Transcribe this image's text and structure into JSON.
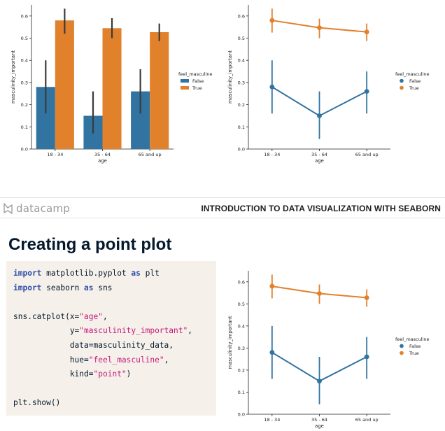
{
  "slide": {
    "brand": "datacamp",
    "course_title": "INTRODUCTION TO DATA VISUALIZATION WITH SEABORN",
    "title": "Creating a point plot",
    "code": [
      [
        {
          "t": "import",
          "c": "kw"
        },
        {
          "t": " matplotlib.pyplot ",
          "c": ""
        },
        {
          "t": "as",
          "c": "kw"
        },
        {
          "t": " plt",
          "c": ""
        }
      ],
      [
        {
          "t": "import",
          "c": "kw"
        },
        {
          "t": " seaborn ",
          "c": ""
        },
        {
          "t": "as",
          "c": "kw"
        },
        {
          "t": " sns",
          "c": ""
        }
      ],
      [],
      [
        {
          "t": "sns.catplot(x=",
          "c": ""
        },
        {
          "t": "\"age\"",
          "c": "str"
        },
        {
          "t": ",",
          "c": ""
        }
      ],
      [
        {
          "t": "            y=",
          "c": ""
        },
        {
          "t": "\"masculinity_important\"",
          "c": "str"
        },
        {
          "t": ",",
          "c": ""
        }
      ],
      [
        {
          "t": "            data=masculinity_data,",
          "c": ""
        }
      ],
      [
        {
          "t": "            hue=",
          "c": ""
        },
        {
          "t": "\"feel_masculine\"",
          "c": "str"
        },
        {
          "t": ",",
          "c": ""
        }
      ],
      [
        {
          "t": "            kind=",
          "c": ""
        },
        {
          "t": "\"point\"",
          "c": "str"
        },
        {
          "t": ")",
          "c": ""
        }
      ],
      [],
      [
        {
          "t": "plt.show()",
          "c": ""
        }
      ]
    ]
  },
  "colors": {
    "false_series": "#3274a1",
    "true_series": "#e1812c",
    "code_bg": "#f5f1ea",
    "keyword": "#2e4fa8",
    "string": "#c7197a"
  },
  "chart_data": [
    {
      "type": "bar",
      "categories": [
        "18 - 34",
        "35 - 64",
        "65 and up"
      ],
      "xlabel": "age",
      "ylabel": "masculinity_important",
      "ylim": [
        0,
        0.65
      ],
      "yticks": [
        "0.0",
        "0.1",
        "0.2",
        "0.3",
        "0.4",
        "0.5",
        "0.6"
      ],
      "legend_title": "feel_masculine",
      "legend_placement": "center-right",
      "series": [
        {
          "name": "False",
          "values": [
            0.28,
            0.15,
            0.26
          ],
          "ci": [
            [
              0.16,
              0.4
            ],
            [
              0.07,
              0.26
            ],
            [
              0.16,
              0.36
            ]
          ]
        },
        {
          "name": "True",
          "values": [
            0.58,
            0.545,
            0.527
          ],
          "ci": [
            [
              0.52,
              0.633
            ],
            [
              0.5,
              0.59
            ],
            [
              0.487,
              0.566
            ]
          ]
        }
      ]
    },
    {
      "type": "line",
      "categories": [
        "18 - 34",
        "35 - 64",
        "65 and up"
      ],
      "xlabel": "age",
      "ylabel": "masculinity_important",
      "ylim": [
        0,
        0.65
      ],
      "yticks": [
        "0.0",
        "0.1",
        "0.2",
        "0.3",
        "0.4",
        "0.5",
        "0.6"
      ],
      "legend_title": "feel_masculine",
      "legend_placement": "center-right",
      "series": [
        {
          "name": "False",
          "values": [
            0.28,
            0.15,
            0.26
          ],
          "ci": [
            [
              0.16,
              0.4
            ],
            [
              0.045,
              0.26
            ],
            [
              0.16,
              0.35
            ]
          ]
        },
        {
          "name": "True",
          "values": [
            0.58,
            0.547,
            0.528
          ],
          "ci": [
            [
              0.525,
              0.633
            ],
            [
              0.5,
              0.588
            ],
            [
              0.487,
              0.566
            ]
          ]
        }
      ]
    },
    {
      "type": "line",
      "categories": [
        "18 - 34",
        "35 - 64",
        "65 and up"
      ],
      "xlabel": "age",
      "ylabel": "masculinity_important",
      "ylim": [
        0,
        0.65
      ],
      "yticks": [
        "0.0",
        "0.1",
        "0.2",
        "0.3",
        "0.4",
        "0.5",
        "0.6"
      ],
      "legend_title": "feel_masculine",
      "legend_placement": "center-right",
      "series": [
        {
          "name": "False",
          "values": [
            0.28,
            0.15,
            0.26
          ],
          "ci": [
            [
              0.16,
              0.4
            ],
            [
              0.045,
              0.26
            ],
            [
              0.16,
              0.35
            ]
          ]
        },
        {
          "name": "True",
          "values": [
            0.58,
            0.547,
            0.528
          ],
          "ci": [
            [
              0.525,
              0.633
            ],
            [
              0.5,
              0.588
            ],
            [
              0.487,
              0.566
            ]
          ]
        }
      ]
    }
  ]
}
